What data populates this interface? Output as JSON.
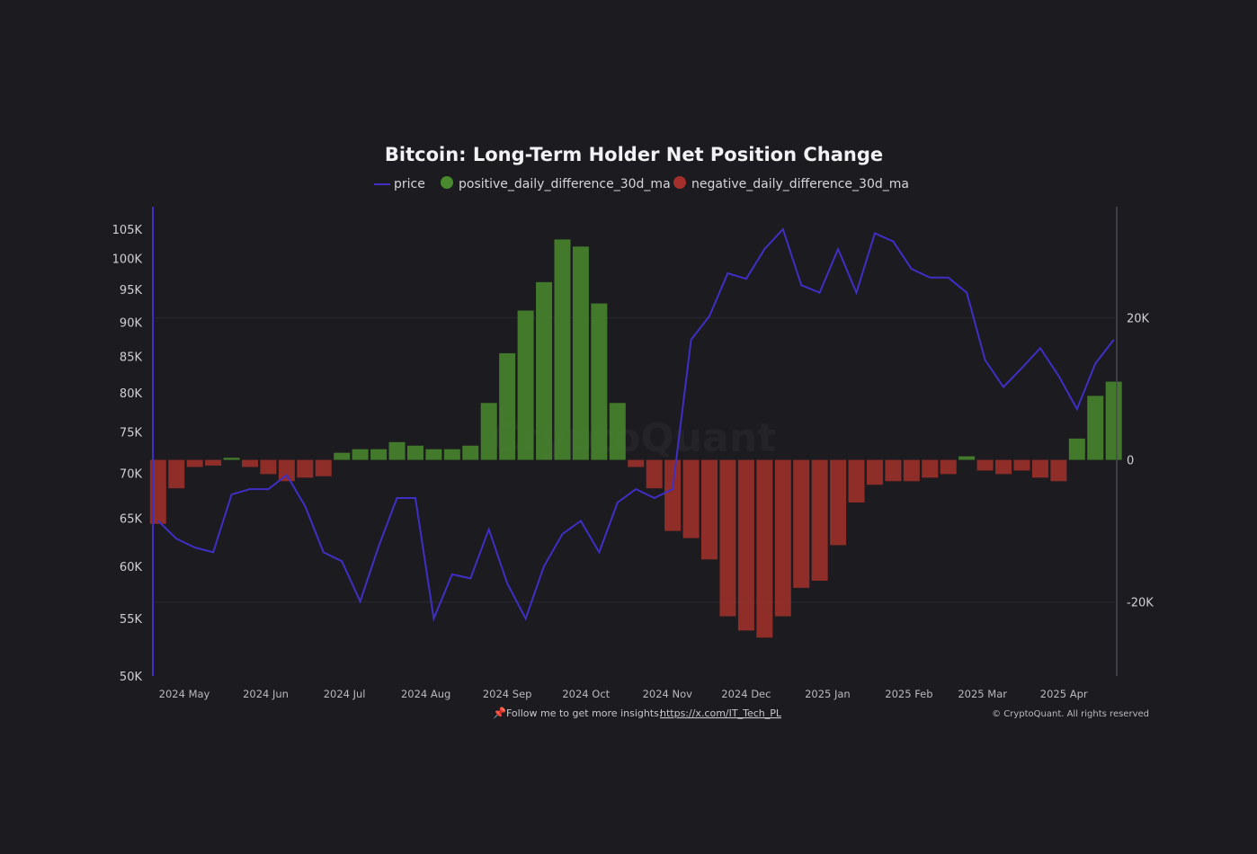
{
  "chart_data": {
    "type": "bar+line",
    "title": "Bitcoin: Long-Term Holder Net Position Change",
    "legend": [
      "price",
      "positive_daily_difference_30d_ma",
      "negative_daily_difference_30d_ma"
    ],
    "legend_placement": "top-center",
    "colors": {
      "price": "#3f2fc4",
      "positive": "#4a8a2e",
      "negative": "#a3302c",
      "background": "#1b1b20"
    },
    "left_axis": {
      "scale": "log",
      "ylim": [
        50000,
        109000
      ],
      "ticks": [
        50000,
        55000,
        60000,
        65000,
        70000,
        75000,
        80000,
        85000,
        90000,
        95000,
        100000,
        105000
      ],
      "tick_labels": [
        "50K",
        "55K",
        "60K",
        "65K",
        "70K",
        "75K",
        "80K",
        "85K",
        "90K",
        "95K",
        "100K",
        "105K"
      ]
    },
    "right_axis": {
      "scale": "linear",
      "ylim": [
        -30400,
        35600
      ],
      "ticks": [
        -20000,
        0,
        20000
      ],
      "tick_labels": [
        "-20K",
        "0",
        "20K"
      ]
    },
    "x_axis": {
      "tick_labels": [
        "2024 May",
        "2024 Jun",
        "2024 Jul",
        "2024 Aug",
        "2024 Sep",
        "2024 Oct",
        "2024 Nov",
        "2024 Dec",
        "2025 Jan",
        "2025 Feb",
        "2025 Mar",
        "2025 Apr"
      ],
      "tick_dates": [
        "2024-05-01",
        "2024-06-01",
        "2024-07-01",
        "2024-08-01",
        "2024-09-01",
        "2024-10-01",
        "2024-11-01",
        "2024-12-01",
        "2025-01-01",
        "2025-02-01",
        "2025-03-01",
        "2025-04-01"
      ]
    },
    "grid": true,
    "dates": [
      "2024-04-21",
      "2024-04-28",
      "2024-05-05",
      "2024-05-12",
      "2024-05-19",
      "2024-05-26",
      "2024-06-02",
      "2024-06-09",
      "2024-06-16",
      "2024-06-23",
      "2024-06-30",
      "2024-07-07",
      "2024-07-14",
      "2024-07-21",
      "2024-07-28",
      "2024-08-04",
      "2024-08-11",
      "2024-08-18",
      "2024-08-25",
      "2024-09-01",
      "2024-09-08",
      "2024-09-15",
      "2024-09-22",
      "2024-09-29",
      "2024-10-06",
      "2024-10-13",
      "2024-10-20",
      "2024-10-27",
      "2024-11-03",
      "2024-11-10",
      "2024-11-17",
      "2024-11-24",
      "2024-12-01",
      "2024-12-08",
      "2024-12-15",
      "2024-12-22",
      "2024-12-29",
      "2025-01-05",
      "2025-01-12",
      "2025-01-19",
      "2025-01-26",
      "2025-02-02",
      "2025-02-09",
      "2025-02-16",
      "2025-02-23",
      "2025-03-02",
      "2025-03-09",
      "2025-03-16",
      "2025-03-23",
      "2025-03-30",
      "2025-04-06",
      "2025-04-13",
      "2025-04-20"
    ],
    "series": [
      {
        "name": "price",
        "axis": "left",
        "type": "line",
        "values": [
          64700,
          62800,
          61900,
          61400,
          67600,
          68200,
          68200,
          69800,
          66300,
          61400,
          60500,
          56600,
          62000,
          67200,
          67200,
          55000,
          59200,
          58800,
          63800,
          58300,
          55000,
          60000,
          63300,
          64700,
          61400,
          66700,
          68200,
          67200,
          68200,
          87400,
          90900,
          97600,
          96700,
          101600,
          105000,
          95700,
          94500,
          101600,
          94500,
          104300,
          102900,
          98300,
          96900,
          96900,
          94500,
          84500,
          80800,
          83400,
          86200,
          82300,
          77900,
          84000,
          87400
        ]
      },
      {
        "name": "daily_difference_30d_ma",
        "axis": "right",
        "type": "bar",
        "values": [
          -9000,
          -4000,
          -1000,
          -800,
          300,
          -1000,
          -2000,
          -3000,
          -2500,
          -2300,
          1000,
          1500,
          1500,
          2500,
          2000,
          1500,
          1500,
          2000,
          8000,
          15000,
          21000,
          25000,
          31000,
          30000,
          22000,
          8000,
          -1000,
          -4000,
          -10000,
          -11000,
          -14000,
          -22000,
          -24000,
          -25000,
          -22000,
          -18000,
          -17000,
          -12000,
          -6000,
          -3500,
          -3000,
          -3000,
          -2500,
          -2000,
          500,
          -1500,
          -2000,
          -1500,
          -2500,
          -3000,
          3000,
          9000,
          11000
        ]
      }
    ]
  },
  "watermark": "CryptoQuant",
  "footer": {
    "pin_icon": "pushpin-icon",
    "text": "Follow me to get more insights: ",
    "link": "https://x.com/IT_Tech_PL",
    "copyright": "© CryptoQuant. All rights reserved"
  }
}
